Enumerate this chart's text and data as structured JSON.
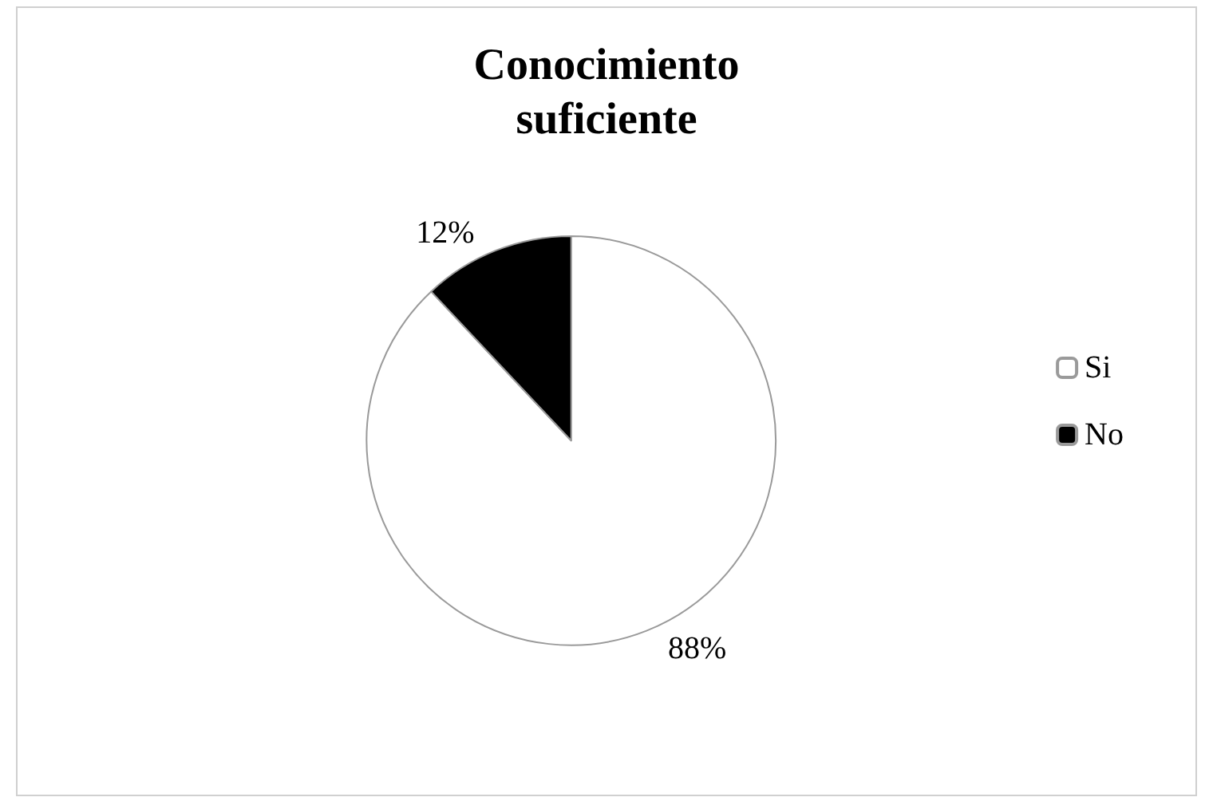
{
  "chart_data": {
    "type": "pie",
    "title": "Conocimiento\nsuficiente",
    "categories": [
      "Si",
      "No"
    ],
    "values": [
      88,
      12
    ],
    "colors": [
      "#ffffff",
      "#000000"
    ],
    "value_labels": [
      "88%",
      "12%"
    ],
    "legend": "right"
  }
}
